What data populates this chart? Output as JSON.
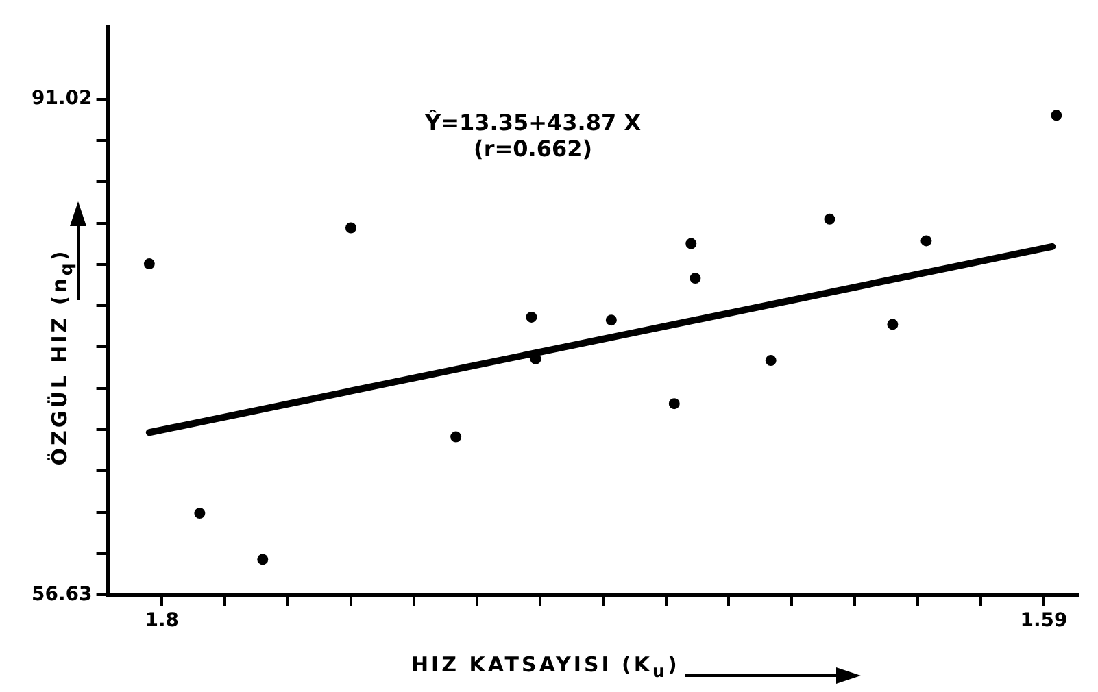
{
  "chart_data": {
    "type": "scatter",
    "xlabel": "HIZ KATSAYISI (K$_{u}$)",
    "ylabel": "ÖZGÜL HIZ (n$_{q}$)",
    "annotations": [
      "Ŷ=13.35+43.87 X",
      "(r=0.662)"
    ],
    "xlim": [
      1.813,
      1.582
    ],
    "xticks": [
      {
        "value": 1.8,
        "label": "1.8"
      },
      {
        "value": 1.785,
        "label": null
      },
      {
        "value": 1.77,
        "label": null
      },
      {
        "value": 1.755,
        "label": null
      },
      {
        "value": 1.74,
        "label": null
      },
      {
        "value": 1.725,
        "label": null
      },
      {
        "value": 1.71,
        "label": null
      },
      {
        "value": 1.695,
        "label": null
      },
      {
        "value": 1.68,
        "label": null
      },
      {
        "value": 1.665,
        "label": null
      },
      {
        "value": 1.65,
        "label": null
      },
      {
        "value": 1.635,
        "label": null
      },
      {
        "value": 1.62,
        "label": null
      },
      {
        "value": 1.605,
        "label": null
      },
      {
        "value": 1.59,
        "label": "1.59"
      }
    ],
    "ylim": [
      56.63,
      96.0
    ],
    "yticks": [
      {
        "value": 56.63,
        "label": "56.63"
      },
      {
        "value": 59.5,
        "label": null
      },
      {
        "value": 62.36,
        "label": null
      },
      {
        "value": 65.23,
        "label": null
      },
      {
        "value": 68.09,
        "label": null
      },
      {
        "value": 70.96,
        "label": null
      },
      {
        "value": 73.83,
        "label": null
      },
      {
        "value": 76.69,
        "label": null
      },
      {
        "value": 79.56,
        "label": null
      },
      {
        "value": 82.43,
        "label": null
      },
      {
        "value": 85.29,
        "label": null
      },
      {
        "value": 88.16,
        "label": null
      },
      {
        "value": 91.02,
        "label": "91.02"
      }
    ],
    "grid": false,
    "legend": false,
    "marker": "circle",
    "series": [
      {
        "color": "#000000",
        "x": [
          1.803,
          1.791,
          1.776,
          1.755,
          1.73,
          1.712,
          1.711,
          1.693,
          1.678,
          1.674,
          1.673,
          1.655,
          1.641,
          1.626,
          1.618,
          1.587
        ],
        "values": [
          79.6,
          62.3,
          59.1,
          82.1,
          67.6,
          75.9,
          73.0,
          75.7,
          69.9,
          81.0,
          78.6,
          72.9,
          82.7,
          75.4,
          81.2,
          89.9
        ]
      },
      {
        "type": "line",
        "marker": "none",
        "color": "#000000",
        "x": [
          1.803,
          1.588
        ],
        "values": [
          67.9,
          80.8
        ]
      }
    ]
  }
}
